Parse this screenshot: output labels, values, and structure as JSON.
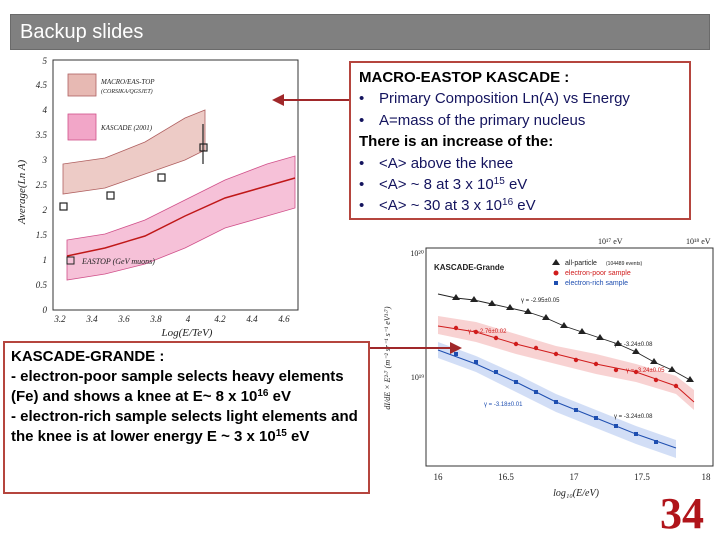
{
  "header": {
    "title": "Backup slides"
  },
  "box1": {
    "heading": "MACRO-EASTOP KASCADE :",
    "bullet1": "Primary Composition Ln(A) vs Energy",
    "bullet2": "A=mass of the primary nucleus",
    "subheading": "There is an increase of the:",
    "bullet3": "<A> above the knee",
    "bullet4_prefix": "<A> ~ 8 at 3 x 10",
    "bullet4_exp": "15",
    "bullet4_suffix": " eV",
    "bullet5_prefix": "<A> ~ 30 at 3 x 10",
    "bullet5_exp": "16",
    "bullet5_suffix": " eV",
    "bullet_char": "•"
  },
  "box2": {
    "heading": "KASCADE-GRANDE :",
    "p1_prefix": "- electron-poor sample selects heavy elements (Fe) and shows a knee at E~ 8 x 10",
    "p1_exp": "16",
    "p1_suffix": " eV",
    "p2_prefix": "- electron-rich sample selects light elements and the knee is at lower energy E ~ 3 x 10",
    "p2_exp": "15",
    "p2_suffix": " eV"
  },
  "plot1": {
    "ylabel": "Average(Ln A)",
    "xlabel": "Log(E/TeV)",
    "yticks": [
      "0",
      "0.5",
      "1",
      "1.5",
      "2",
      "2.5",
      "3",
      "3.5",
      "4",
      "4.5",
      "5"
    ],
    "xticks": [
      "3.2",
      "3.4",
      "3.6",
      "3.8",
      "4",
      "4.2",
      "4.4",
      "4.6"
    ],
    "legend_macro": "MACRO/EAS-TOP",
    "legend_macro2": "(CORSIKA/QGSJET)",
    "legend_kascade": "KASCADE (2001)",
    "legend_eastop": "EASTOP (GeV muons)"
  },
  "plot2": {
    "title": "KASCADE-Grande",
    "legend_all": "all-particle",
    "legend_all_events": "(104489 events)",
    "legend_poor": "electron-poor sample",
    "legend_rich": "electron-rich sample",
    "top_label1": "10¹⁷ eV",
    "top_label2": "10¹⁸ eV",
    "ytick1": "10²⁰",
    "ytick2": "10¹⁹",
    "ylabel": "dI/dE × E²·⁷ (m⁻² sr⁻¹ s⁻¹ eV¹·⁷)",
    "xlabel": "log₁₀(E/eV)",
    "xticks": [
      "16",
      "16.5",
      "17",
      "17.5",
      "18"
    ],
    "gamma1": "γ = -2.95±0.05",
    "gamma2": "γ = -2.76±0.02",
    "gamma3": "γ = -3.24±0.08",
    "gamma4": "γ = -3.24±0.05",
    "gamma5": "γ = -3.18±0.01",
    "gamma6": "γ = -3.24±0.08"
  },
  "footer": {
    "page_number": "34"
  },
  "colors": {
    "accent": "#b0141a",
    "box_border": "#b5453e",
    "titlebar": "#808080"
  }
}
